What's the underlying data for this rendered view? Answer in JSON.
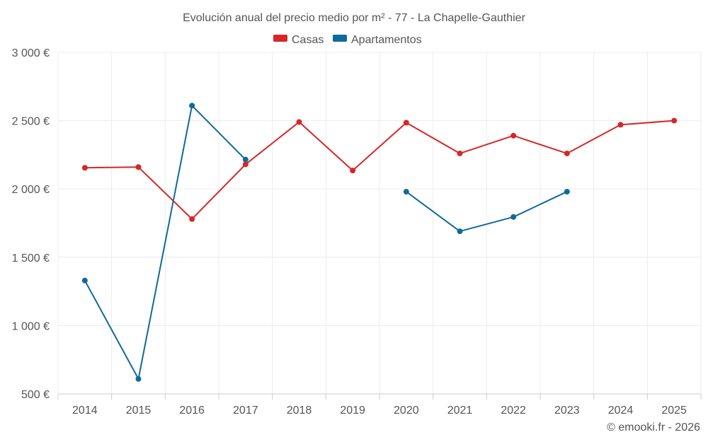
{
  "chart_data": {
    "type": "line",
    "title": "Evolución anual del precio medio por m² - 77 - La Chapelle-Gauthier",
    "categories": [
      "2014",
      "2015",
      "2016",
      "2017",
      "2018",
      "2019",
      "2020",
      "2021",
      "2022",
      "2023",
      "2024",
      "2025"
    ],
    "ylim": [
      500,
      3000
    ],
    "yticks": [
      500,
      1000,
      1500,
      2000,
      2500,
      3000
    ],
    "ytick_labels": [
      "500 €",
      "1 000 €",
      "1 500 €",
      "2 000 €",
      "2 500 €",
      "3 000 €"
    ],
    "legend_position": "top-center",
    "grid": true,
    "series": [
      {
        "name": "Casas",
        "color": "#d62728",
        "values": [
          2155,
          2160,
          1780,
          2180,
          2490,
          2135,
          2485,
          2260,
          2390,
          2260,
          2470,
          2500
        ]
      },
      {
        "name": "Apartamentos",
        "color": "#0f6a9a",
        "values": [
          1330,
          610,
          2610,
          2215,
          null,
          null,
          1980,
          1690,
          1795,
          1980,
          null,
          null
        ]
      }
    ]
  },
  "credit": "© emooki.fr - 2026"
}
